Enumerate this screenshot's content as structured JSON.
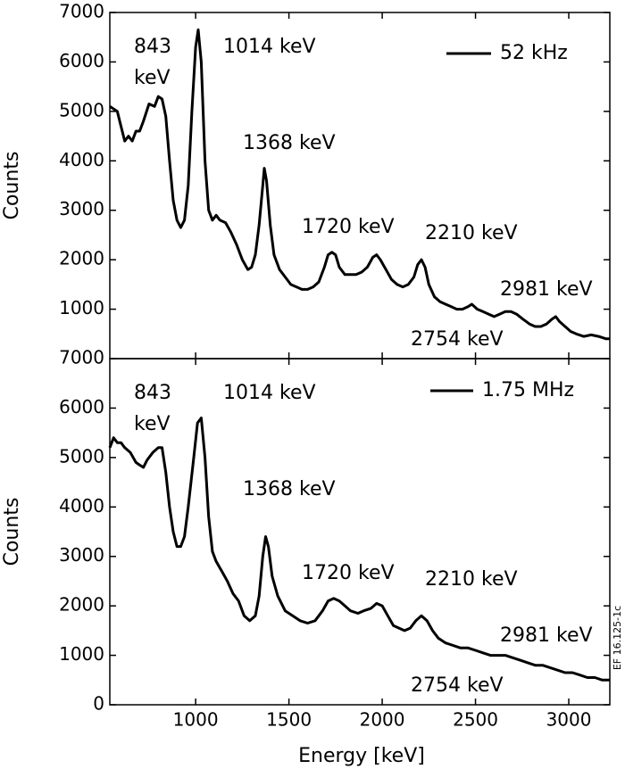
{
  "chart_data": [
    {
      "type": "line",
      "ylabel": "Counts",
      "annotations": [
        "843",
        "keV",
        "1014 keV",
        "1368 keV",
        "1720 keV",
        "2210 keV",
        "2981 keV",
        "2754 keV"
      ],
      "series": [
        {
          "name": "52 kHz",
          "color": "#000000",
          "x": [
            540,
            580,
            600,
            620,
            640,
            660,
            680,
            700,
            720,
            750,
            780,
            800,
            820,
            840,
            860,
            880,
            900,
            920,
            940,
            960,
            980,
            1000,
            1014,
            1030,
            1050,
            1070,
            1090,
            1110,
            1130,
            1160,
            1190,
            1220,
            1250,
            1280,
            1300,
            1320,
            1340,
            1360,
            1368,
            1380,
            1400,
            1420,
            1450,
            1480,
            1510,
            1540,
            1570,
            1600,
            1630,
            1660,
            1690,
            1710,
            1730,
            1750,
            1770,
            1800,
            1830,
            1860,
            1890,
            1920,
            1950,
            1970,
            1990,
            2020,
            2050,
            2080,
            2110,
            2140,
            2170,
            2190,
            2210,
            2230,
            2250,
            2280,
            2310,
            2340,
            2370,
            2400,
            2430,
            2460,
            2480,
            2510,
            2540,
            2570,
            2600,
            2630,
            2660,
            2690,
            2720,
            2754,
            2790,
            2820,
            2850,
            2880,
            2910,
            2930,
            2950,
            2980,
            3010,
            3040,
            3080,
            3120,
            3160,
            3200,
            3220
          ],
          "values": [
            5100,
            5000,
            4700,
            4400,
            4500,
            4400,
            4600,
            4600,
            4800,
            5150,
            5100,
            5300,
            5250,
            4900,
            4000,
            3200,
            2800,
            2650,
            2800,
            3500,
            5000,
            6300,
            6650,
            6000,
            4000,
            3000,
            2800,
            2900,
            2800,
            2750,
            2550,
            2300,
            2000,
            1800,
            1850,
            2100,
            2700,
            3500,
            3850,
            3600,
            2700,
            2100,
            1800,
            1650,
            1500,
            1450,
            1400,
            1400,
            1450,
            1550,
            1850,
            2100,
            2150,
            2100,
            1850,
            1700,
            1700,
            1700,
            1750,
            1850,
            2050,
            2100,
            2000,
            1800,
            1600,
            1500,
            1450,
            1500,
            1650,
            1900,
            2000,
            1850,
            1500,
            1250,
            1150,
            1100,
            1050,
            1000,
            1000,
            1050,
            1100,
            1000,
            950,
            900,
            850,
            900,
            950,
            950,
            900,
            800,
            700,
            650,
            650,
            700,
            800,
            850,
            750,
            650,
            550,
            500,
            450,
            480,
            450,
            400,
            400
          ]
        }
      ],
      "xlim": [
        540,
        3220
      ],
      "ylim": [
        0,
        7000
      ],
      "yticks": [
        1000,
        2000,
        3000,
        4000,
        5000,
        6000,
        7000
      ]
    },
    {
      "type": "line",
      "ylabel": "Counts",
      "xlabel": "Energy [keV]",
      "annotations": [
        "843",
        "keV",
        "1014 keV",
        "1368 keV",
        "1720 keV",
        "2210 keV",
        "2981 keV",
        "2754 keV"
      ],
      "series": [
        {
          "name": "1.75 MHz",
          "color": "#000000",
          "x": [
            540,
            560,
            580,
            600,
            620,
            650,
            680,
            700,
            720,
            740,
            770,
            800,
            820,
            840,
            860,
            880,
            900,
            920,
            940,
            960,
            990,
            1010,
            1030,
            1050,
            1070,
            1090,
            1110,
            1140,
            1170,
            1200,
            1230,
            1260,
            1290,
            1320,
            1340,
            1360,
            1375,
            1390,
            1410,
            1440,
            1480,
            1520,
            1560,
            1600,
            1640,
            1680,
            1710,
            1740,
            1770,
            1800,
            1830,
            1870,
            1900,
            1940,
            1970,
            2000,
            2030,
            2060,
            2090,
            2120,
            2150,
            2180,
            2210,
            2240,
            2270,
            2300,
            2340,
            2380,
            2420,
            2460,
            2500,
            2540,
            2580,
            2620,
            2660,
            2700,
            2740,
            2780,
            2820,
            2860,
            2900,
            2940,
            2980,
            3020,
            3060,
            3100,
            3140,
            3180,
            3220
          ],
          "values": [
            5200,
            5400,
            5300,
            5300,
            5200,
            5100,
            4900,
            4850,
            4800,
            4950,
            5100,
            5200,
            5200,
            4700,
            4000,
            3500,
            3200,
            3200,
            3400,
            4000,
            5000,
            5700,
            5800,
            5000,
            3800,
            3100,
            2900,
            2700,
            2500,
            2250,
            2100,
            1800,
            1700,
            1800,
            2200,
            3000,
            3400,
            3200,
            2600,
            2200,
            1900,
            1800,
            1700,
            1650,
            1700,
            1900,
            2100,
            2150,
            2100,
            2000,
            1900,
            1850,
            1900,
            1950,
            2050,
            2000,
            1800,
            1600,
            1550,
            1500,
            1550,
            1700,
            1800,
            1700,
            1500,
            1350,
            1250,
            1200,
            1150,
            1150,
            1100,
            1050,
            1000,
            1000,
            1000,
            950,
            900,
            850,
            800,
            800,
            750,
            700,
            650,
            650,
            600,
            550,
            550,
            500,
            500
          ]
        }
      ],
      "xlim": [
        540,
        3220
      ],
      "ylim": [
        0,
        7000
      ],
      "yticks": [
        0,
        1000,
        2000,
        3000,
        4000,
        5000,
        6000,
        7000
      ],
      "xticks": [
        1000,
        1500,
        2000,
        2500,
        3000
      ]
    }
  ],
  "figure_id": "EF 16.125-1c"
}
